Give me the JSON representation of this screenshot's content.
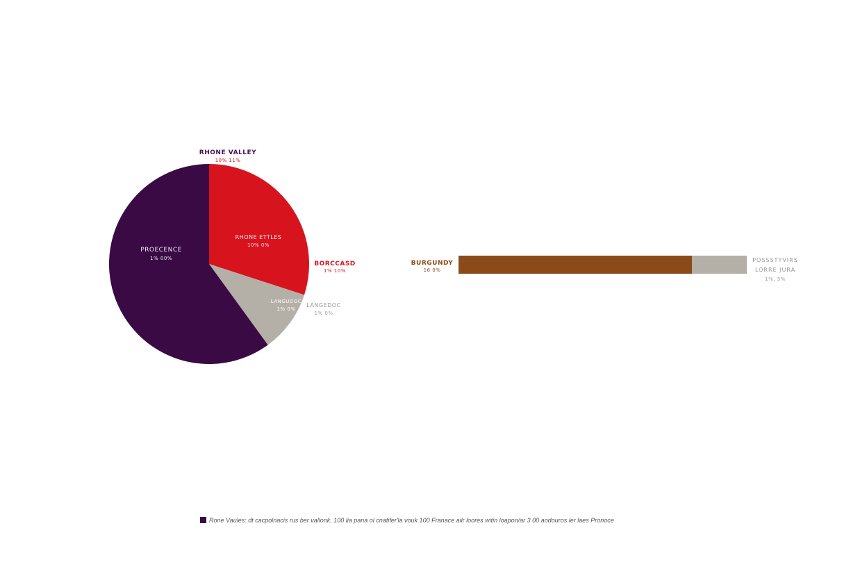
{
  "chart_data": [
    {
      "type": "pie",
      "title": "",
      "slices": [
        {
          "label": "Rhone Valley / Rhone Ettles",
          "value": 30,
          "color": "#d7141e",
          "inner_label": "RHONE ETTLES",
          "inner_value": "10% 0%"
        },
        {
          "label": "Languedoc",
          "value": 10,
          "color": "#b5b0a7",
          "inner_label": "LANGUEDOC",
          "inner_value": "1% 0%"
        },
        {
          "label": "Provence",
          "value": 60,
          "color": "#3a0a45",
          "inner_label": "PROECENCE",
          "inner_value": "1% 00%"
        }
      ],
      "start_angle": 0,
      "direction": "clockwise"
    },
    {
      "type": "bar",
      "orientation": "horizontal",
      "stacked": true,
      "categories": [
        "Burgundy",
        "Loire Jura"
      ],
      "values": [
        81,
        19
      ],
      "colors": [
        "#8b4a19",
        "#b5b0a7"
      ]
    }
  ],
  "labels": {
    "rhone_valley": {
      "title": "RHONE VALLEY",
      "value": "10% 11%",
      "title_color": "#4a1156",
      "value_color": "#d7141e"
    },
    "rhone_ettles": {
      "title": "RHONE ETTLES",
      "value": "10% 0%"
    },
    "provence": {
      "title": "PROECENCE",
      "value": "1% 00%"
    },
    "bordeaux": {
      "title": "BORCCASD",
      "value": "1% 10%",
      "color": "#d7141e"
    },
    "languedoc_inner": {
      "title": "LANGUDOC",
      "value": "1% 0%"
    },
    "languedoc_outer": {
      "title": "LANGEDOC",
      "value": "1% 0%",
      "color": "#999999"
    },
    "burgundy": {
      "title": "BURGUNDY",
      "value": "16 0%",
      "color": "#8b4a19"
    },
    "loire": {
      "line1": "POSSSTYVIRS",
      "line2": "LORRE JURA",
      "value": "1%, 5%",
      "color": "#999999"
    }
  },
  "footnote": {
    "text": "Rone Vaules: dt cacpolnacis rus ber vallonk. 100 lia pana ol cnatifer'la vouk 100 Franace ailr loores witin loapon/ar 3 00 aodouros ler laes Pronoce"
  }
}
